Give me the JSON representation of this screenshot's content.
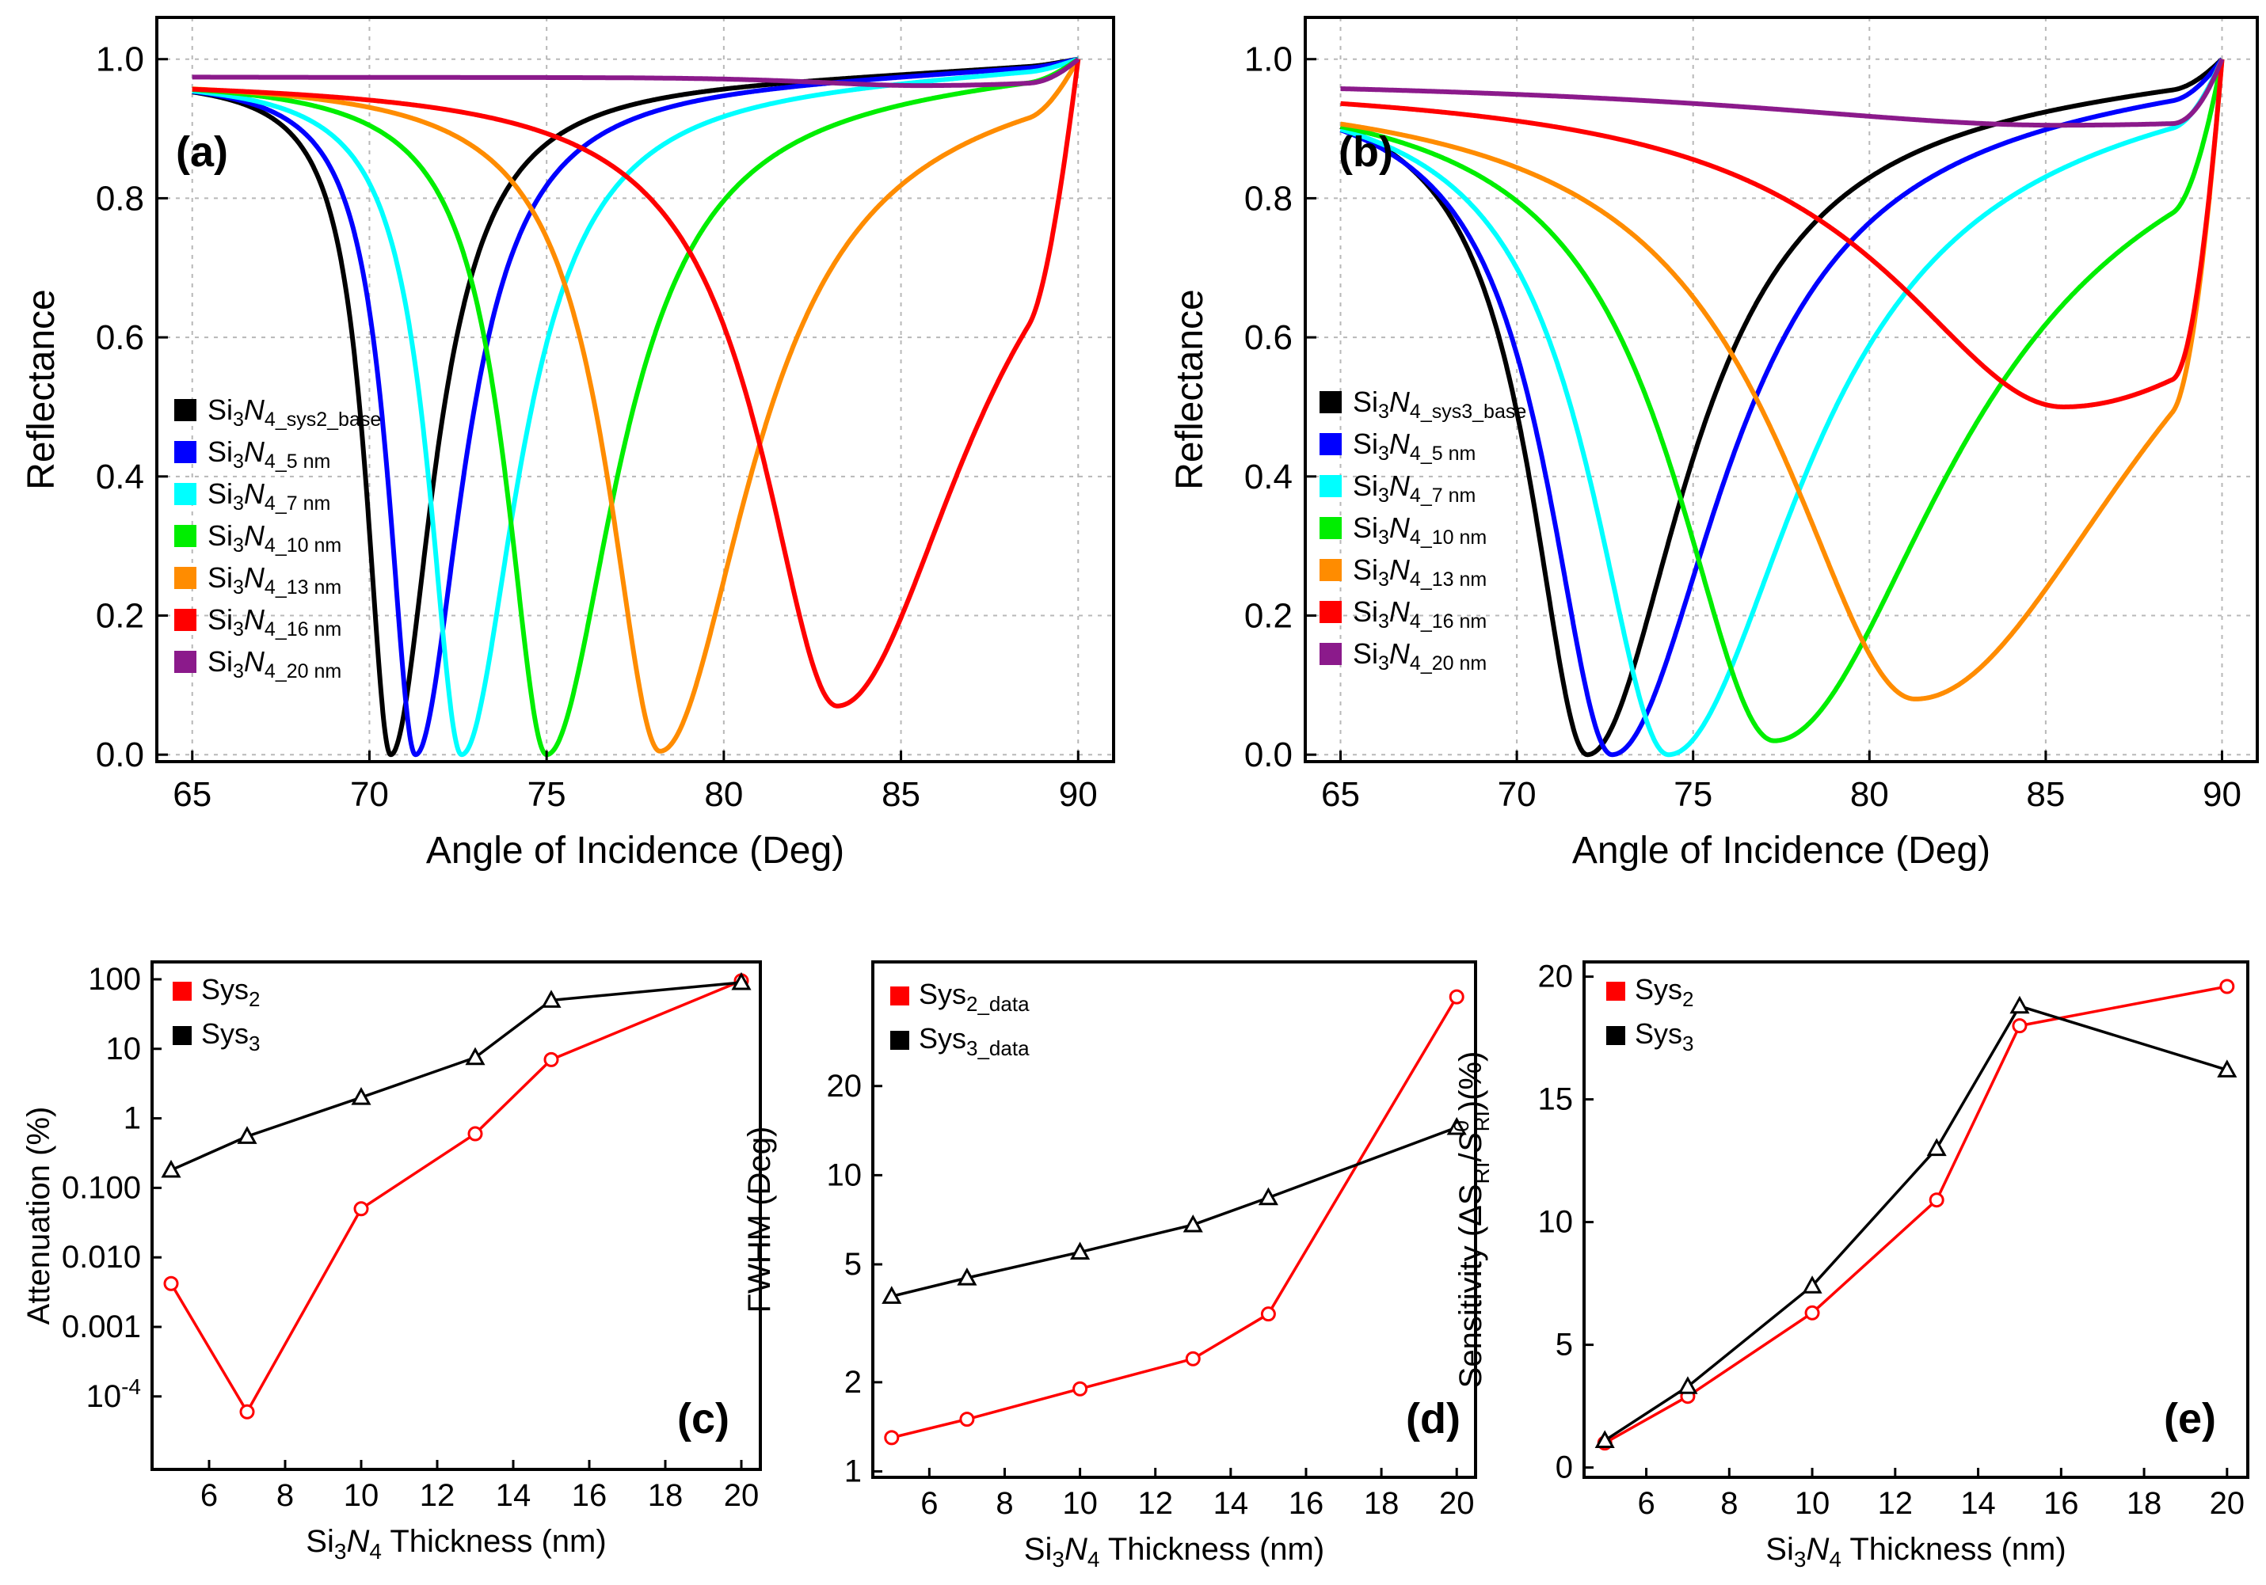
{
  "chart_data": [
    {
      "id": "a",
      "type": "line",
      "panel_label": "(a)",
      "xlabel": "Angle of Incidence (Deg)",
      "ylabel": "Reflectance",
      "xlim": [
        64,
        91
      ],
      "ylim": [
        -0.01,
        1.06
      ],
      "xticks": [
        65,
        70,
        75,
        80,
        85,
        90
      ],
      "yticks": [
        "0.0",
        "0.2",
        "0.4",
        "0.6",
        "0.8",
        "1.0"
      ],
      "legend_position": "center-left",
      "series": [
        {
          "legend": {
            "base": "Si",
            "s1": "3",
            "mid": "N",
            "s2": "4",
            "tail": "_sys2_base"
          },
          "color": "#000000",
          "dip_angle": 70.6,
          "min_R": 0.0,
          "width": 0.95,
          "k": 0.9
        },
        {
          "legend": {
            "base": "Si",
            "s1": "3",
            "mid": "N",
            "s2": "4",
            "tail": "_5 nm"
          },
          "color": "#0000FF",
          "dip_angle": 71.3,
          "min_R": 0.0,
          "width": 1.05,
          "k": 0.9
        },
        {
          "legend": {
            "base": "Si",
            "s1": "3",
            "mid": "N",
            "s2": "4",
            "tail": "_7 nm"
          },
          "color": "#00FFFF",
          "dip_angle": 72.6,
          "min_R": 0.0,
          "width": 1.25,
          "k": 0.9
        },
        {
          "legend": {
            "base": "Si",
            "s1": "3",
            "mid": "N",
            "s2": "4",
            "tail": "_10 nm"
          },
          "color": "#00EE00",
          "dip_angle": 75.0,
          "min_R": 0.0,
          "width": 1.55,
          "k": 0.9
        },
        {
          "legend": {
            "base": "Si",
            "s1": "3",
            "mid": "N",
            "s2": "4",
            "tail": "_13 nm"
          },
          "color": "#FF8C00",
          "dip_angle": 78.2,
          "min_R": 0.005,
          "width": 2.0,
          "k": 0.9
        },
        {
          "legend": {
            "base": "Si",
            "s1": "3",
            "mid": "N",
            "s2": "4",
            "tail": "_16 nm"
          },
          "color": "#FF0000",
          "dip_angle": 83.2,
          "min_R": 0.07,
          "width": 2.9,
          "k": 0.9
        },
        {
          "legend": {
            "base": "Si",
            "s1": "3",
            "mid": "N",
            "s2": "4",
            "tail": "_20 nm"
          },
          "color": "#8B1A8B",
          "dip_angle": 85.5,
          "min_R": 0.962,
          "width": 6.0,
          "k": 0.9
        }
      ]
    },
    {
      "id": "b",
      "type": "line",
      "panel_label": "(b)",
      "xlabel": "Angle of Incidence (Deg)",
      "ylabel": "Reflectance",
      "xlim": [
        64,
        91
      ],
      "ylim": [
        -0.01,
        1.06
      ],
      "xticks": [
        65,
        70,
        75,
        80,
        85,
        90
      ],
      "yticks": [
        "0.0",
        "0.2",
        "0.4",
        "0.6",
        "0.8",
        "1.0"
      ],
      "legend_position": "center-left",
      "series": [
        {
          "legend": {
            "base": "Si",
            "s1": "3",
            "mid": "N",
            "s2": "4",
            "tail": "_sys3_base"
          },
          "color": "#000000",
          "dip_angle": 72.0,
          "min_R": 0.0,
          "width": 2.2,
          "k": 0.9
        },
        {
          "legend": {
            "base": "Si",
            "s1": "3",
            "mid": "N",
            "s2": "4",
            "tail": "_5 nm"
          },
          "color": "#0000FF",
          "dip_angle": 72.7,
          "min_R": 0.0,
          "width": 2.5,
          "k": 0.9
        },
        {
          "legend": {
            "base": "Si",
            "s1": "3",
            "mid": "N",
            "s2": "4",
            "tail": "_7 nm"
          },
          "color": "#00FFFF",
          "dip_angle": 74.3,
          "min_R": 0.0,
          "width": 3.0,
          "k": 0.9
        },
        {
          "legend": {
            "base": "Si",
            "s1": "3",
            "mid": "N",
            "s2": "4",
            "tail": "_10 nm"
          },
          "color": "#00EE00",
          "dip_angle": 77.3,
          "min_R": 0.02,
          "width": 3.9,
          "k": 0.9
        },
        {
          "legend": {
            "base": "Si",
            "s1": "3",
            "mid": "N",
            "s2": "4",
            "tail": "_13 nm"
          },
          "color": "#FF8C00",
          "dip_angle": 81.3,
          "min_R": 0.08,
          "width": 5.2,
          "k": 0.9
        },
        {
          "legend": {
            "base": "Si",
            "s1": "3",
            "mid": "N",
            "s2": "4",
            "tail": "_16 nm"
          },
          "color": "#FF0000",
          "dip_angle": 85.5,
          "min_R": 0.5,
          "width": 6.8,
          "k": 0.9
        },
        {
          "legend": {
            "base": "Si",
            "s1": "3",
            "mid": "N",
            "s2": "4",
            "tail": "_20 nm"
          },
          "color": "#8B1A8B",
          "dip_angle": 85.3,
          "min_R": 0.905,
          "width": 13.0,
          "k": 0.9
        }
      ]
    },
    {
      "id": "c",
      "type": "line",
      "yscale": "log",
      "panel_label": "(c)",
      "xlabel": {
        "base": "Si",
        "s1": "3",
        "mid": "N",
        "s2": "4",
        "tail": " Thickness (nm)"
      },
      "ylabel": "Attenuation (%)",
      "xlim": [
        4.5,
        20.5
      ],
      "ylim_log10": [
        -5.05,
        2.25
      ],
      "xticks": [
        6,
        8,
        10,
        12,
        14,
        16,
        18,
        20
      ],
      "yticks": [
        {
          "v": 100,
          "label": "100"
        },
        {
          "v": 10,
          "label": "10"
        },
        {
          "v": 1,
          "label": "1"
        },
        {
          "v": 0.1,
          "label": "0.100"
        },
        {
          "v": 0.01,
          "label": "0.010"
        },
        {
          "v": 0.001,
          "label": "0.001"
        },
        {
          "v": 0.0001,
          "label": "10",
          "exp": "-4"
        }
      ],
      "x": [
        5,
        7,
        10,
        13,
        15,
        20
      ],
      "legend_position": "top-left",
      "series": [
        {
          "name": {
            "base": "Sys",
            "sub": "2"
          },
          "color": "#FF0000",
          "marker": "circle",
          "values": [
            0.0042,
            6e-05,
            0.05,
            0.6,
            7,
            95
          ]
        },
        {
          "name": {
            "base": "Sys",
            "sub": "3"
          },
          "color": "#000000",
          "marker": "triangle",
          "values": [
            0.18,
            0.55,
            2.0,
            7.5,
            50,
            90
          ]
        }
      ]
    },
    {
      "id": "d",
      "type": "line",
      "yscale": "log",
      "panel_label": "(d)",
      "xlabel": {
        "base": "Si",
        "s1": "3",
        "mid": "N",
        "s2": "4",
        "tail": " Thickness (nm)"
      },
      "ylabel": "FWHM (Deg)",
      "xlim": [
        4.5,
        20.5
      ],
      "ylim_log10": [
        -0.02,
        1.72
      ],
      "xticks": [
        6,
        8,
        10,
        12,
        14,
        16,
        18,
        20
      ],
      "yticks": [
        {
          "v": 1,
          "label": "1"
        },
        {
          "v": 2,
          "label": "2"
        },
        {
          "v": 5,
          "label": "5"
        },
        {
          "v": 10,
          "label": "10"
        },
        {
          "v": 20,
          "label": "20"
        }
      ],
      "x": [
        5,
        7,
        10,
        13,
        15,
        20
      ],
      "legend_position": "top-left",
      "series": [
        {
          "name": {
            "base": "Sys",
            "sub": "2_data"
          },
          "color": "#FF0000",
          "marker": "circle",
          "values": [
            1.3,
            1.5,
            1.9,
            2.4,
            3.4,
            40
          ]
        },
        {
          "name": {
            "base": "Sys",
            "sub": "3_data"
          },
          "color": "#000000",
          "marker": "triangle",
          "values": [
            3.9,
            4.5,
            5.5,
            6.8,
            8.4,
            14.5
          ]
        }
      ]
    },
    {
      "id": "e",
      "type": "line",
      "panel_label": "(e)",
      "xlabel": {
        "base": "Si",
        "s1": "3",
        "mid": "N",
        "s2": "4",
        "tail": " Thickness (nm)"
      },
      "ylabel": "Sensitivity (ΔS_RI/S_RI^0)(%)",
      "ylabel_parts": {
        "pre": "Sensitivity (ΔS",
        "s1": "RI",
        "mid": "/",
        "italic": "S",
        "sup": "0",
        "s2": "RI",
        "post": ")(%)"
      },
      "xlim": [
        4.5,
        20.5
      ],
      "ylim": [
        -0.4,
        20.6
      ],
      "xticks": [
        6,
        8,
        10,
        12,
        14,
        16,
        18,
        20
      ],
      "yticks": [
        0,
        5,
        10,
        15,
        20
      ],
      "x": [
        5,
        7,
        10,
        13,
        15,
        20
      ],
      "legend_position": "top-left",
      "series": [
        {
          "name": {
            "base": "Sys",
            "sub": "2"
          },
          "color": "#FF0000",
          "marker": "circle",
          "values": [
            1.0,
            2.9,
            6.3,
            10.9,
            18.0,
            19.6
          ]
        },
        {
          "name": {
            "base": "Sys",
            "sub": "3"
          },
          "color": "#000000",
          "marker": "triangle",
          "values": [
            1.1,
            3.3,
            7.4,
            13.0,
            18.8,
            16.2
          ]
        }
      ]
    }
  ]
}
